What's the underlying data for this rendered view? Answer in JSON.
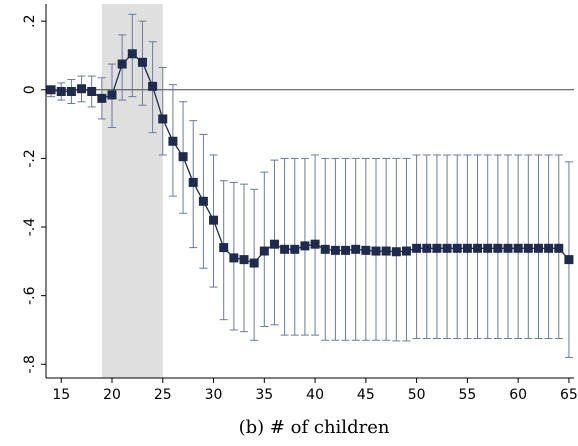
{
  "caption": "(b) # of children",
  "chart_data": {
    "type": "line",
    "title": "",
    "xlabel": "(b) # of children",
    "ylabel": "",
    "xlim": [
      13.5,
      65.5
    ],
    "ylim": [
      -0.84,
      0.25
    ],
    "xticks": [
      15,
      20,
      25,
      30,
      35,
      40,
      45,
      50,
      55,
      60,
      65
    ],
    "xtick_labels": [
      "15",
      "20",
      "25",
      "30",
      "35",
      "40",
      "45",
      "50",
      "55",
      "60",
      "65"
    ],
    "yticks": [
      0.2,
      0,
      -0.2,
      -0.4,
      -0.6,
      -0.8
    ],
    "ytick_labels": [
      ".2",
      "0",
      "-.2",
      "-.4",
      "-.6",
      "-.8"
    ],
    "shaded_region": [
      19,
      25
    ],
    "reference_line": 0,
    "grid": false,
    "legend": "none",
    "colors": {
      "series": "#1f2a4d",
      "errorbar": "#6b7a9a",
      "shade": "#d9d9d9",
      "refline": "#444444"
    },
    "series": [
      {
        "x": [
          14,
          15,
          16,
          17,
          18,
          19,
          20,
          21,
          22,
          23,
          24,
          25,
          26,
          27,
          28,
          29,
          30,
          31,
          32,
          33,
          34,
          35,
          36,
          37,
          38,
          39,
          40,
          41,
          42,
          43,
          44,
          45,
          46,
          47,
          48,
          49,
          50,
          51,
          52,
          53,
          54,
          55,
          56,
          57,
          58,
          59,
          60,
          61,
          62,
          63,
          64,
          65
        ],
        "y": [
          0,
          -0.005,
          -0.005,
          0.003,
          -0.005,
          -0.025,
          -0.015,
          0.075,
          0.105,
          0.08,
          0.01,
          -0.085,
          -0.15,
          -0.195,
          -0.27,
          -0.325,
          -0.38,
          -0.46,
          -0.49,
          -0.495,
          -0.505,
          -0.47,
          -0.45,
          -0.465,
          -0.465,
          -0.455,
          -0.45,
          -0.465,
          -0.468,
          -0.468,
          -0.465,
          -0.468,
          -0.47,
          -0.47,
          -0.472,
          -0.47,
          -0.462,
          -0.462,
          -0.462,
          -0.462,
          -0.462,
          -0.462,
          -0.462,
          -0.462,
          -0.462,
          -0.462,
          -0.462,
          -0.462,
          -0.462,
          -0.462,
          -0.462,
          -0.495
        ],
        "lower": [
          -0.02,
          -0.03,
          -0.04,
          -0.035,
          -0.05,
          -0.085,
          -0.11,
          -0.03,
          -0.02,
          -0.045,
          -0.125,
          -0.19,
          -0.31,
          -0.36,
          -0.46,
          -0.52,
          -0.575,
          -0.67,
          -0.7,
          -0.705,
          -0.73,
          -0.69,
          -0.685,
          -0.715,
          -0.715,
          -0.715,
          -0.715,
          -0.73,
          -0.73,
          -0.73,
          -0.73,
          -0.73,
          -0.73,
          -0.73,
          -0.732,
          -0.732,
          -0.725,
          -0.725,
          -0.725,
          -0.725,
          -0.725,
          -0.725,
          -0.725,
          -0.725,
          -0.725,
          -0.725,
          -0.725,
          -0.725,
          -0.725,
          -0.725,
          -0.725,
          -0.78
        ],
        "upper": [
          0.01,
          0.02,
          0.03,
          0.04,
          0.04,
          0.035,
          0.075,
          0.16,
          0.22,
          0.2,
          0.14,
          0.065,
          0.015,
          -0.035,
          -0.09,
          -0.13,
          -0.19,
          -0.265,
          -0.27,
          -0.275,
          -0.29,
          -0.24,
          -0.205,
          -0.2,
          -0.2,
          -0.2,
          -0.19,
          -0.2,
          -0.2,
          -0.2,
          -0.2,
          -0.2,
          -0.2,
          -0.2,
          -0.2,
          -0.2,
          -0.19,
          -0.19,
          -0.19,
          -0.19,
          -0.19,
          -0.19,
          -0.19,
          -0.19,
          -0.19,
          -0.19,
          -0.19,
          -0.19,
          -0.19,
          -0.19,
          -0.19,
          -0.21
        ]
      }
    ]
  }
}
